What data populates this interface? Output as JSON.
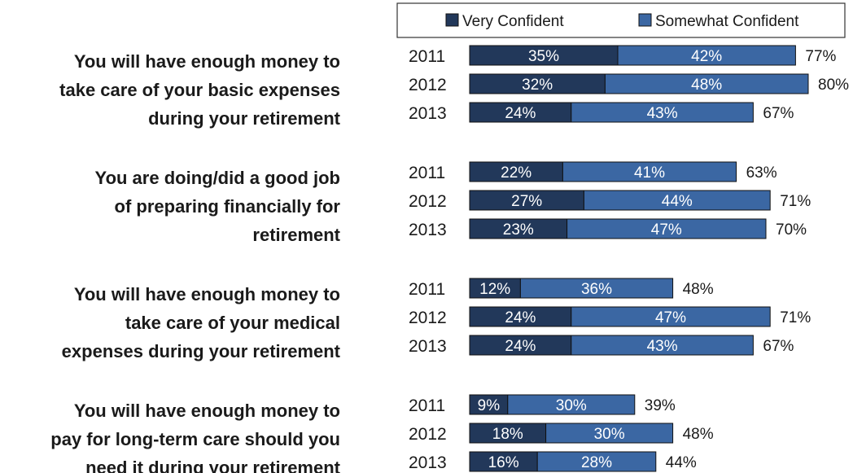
{
  "chart_data": {
    "type": "bar",
    "orientation": "horizontal",
    "stacked": true,
    "legend": {
      "placement": "top",
      "entries": [
        {
          "name": "Very Confident",
          "color": "#22385a"
        },
        {
          "name": "Somewhat Confident",
          "color": "#3b67a3"
        }
      ]
    },
    "questions": [
      {
        "label_lines": [
          "You will have enough money to",
          "take care of your basic expenses",
          "during your retirement"
        ],
        "rows": [
          {
            "year": "2011",
            "very": 35,
            "somewhat": 42,
            "total": 77,
            "very_label": "35%",
            "somewhat_label": "42%",
            "total_label": "77%"
          },
          {
            "year": "2012",
            "very": 32,
            "somewhat": 48,
            "total": 80,
            "very_label": "32%",
            "somewhat_label": "48%",
            "total_label": "80%"
          },
          {
            "year": "2013",
            "very": 24,
            "somewhat": 43,
            "total": 67,
            "very_label": "24%",
            "somewhat_label": "43%",
            "total_label": "67%"
          }
        ]
      },
      {
        "label_lines": [
          "You are doing/did a good job",
          "of preparing financially for",
          "retirement"
        ],
        "rows": [
          {
            "year": "2011",
            "very": 22,
            "somewhat": 41,
            "total": 63,
            "very_label": "22%",
            "somewhat_label": "41%",
            "total_label": "63%"
          },
          {
            "year": "2012",
            "very": 27,
            "somewhat": 44,
            "total": 71,
            "very_label": "27%",
            "somewhat_label": "44%",
            "total_label": "71%"
          },
          {
            "year": "2013",
            "very": 23,
            "somewhat": 47,
            "total": 70,
            "very_label": "23%",
            "somewhat_label": "47%",
            "total_label": "70%"
          }
        ]
      },
      {
        "label_lines": [
          "You will have enough money to",
          "take care of your medical",
          "expenses during your retirement"
        ],
        "rows": [
          {
            "year": "2011",
            "very": 12,
            "somewhat": 36,
            "total": 48,
            "very_label": "12%",
            "somewhat_label": "36%",
            "total_label": "48%"
          },
          {
            "year": "2012",
            "very": 24,
            "somewhat": 47,
            "total": 71,
            "very_label": "24%",
            "somewhat_label": "47%",
            "total_label": "71%"
          },
          {
            "year": "2013",
            "very": 24,
            "somewhat": 43,
            "total": 67,
            "very_label": "24%",
            "somewhat_label": "43%",
            "total_label": "67%"
          }
        ]
      },
      {
        "label_lines": [
          "You will have enough money to",
          "pay for long-term care should you",
          "need it during your retirement"
        ],
        "rows": [
          {
            "year": "2011",
            "very": 9,
            "somewhat": 30,
            "total": 39,
            "very_label": "9%",
            "somewhat_label": "30%",
            "total_label": "39%"
          },
          {
            "year": "2012",
            "very": 18,
            "somewhat": 30,
            "total": 48,
            "very_label": "18%",
            "somewhat_label": "30%",
            "total_label": "48%"
          },
          {
            "year": "2013",
            "very": 16,
            "somewhat": 28,
            "total": 44,
            "very_label": "16%",
            "somewhat_label": "28%",
            "total_label": "44%"
          }
        ]
      }
    ]
  }
}
